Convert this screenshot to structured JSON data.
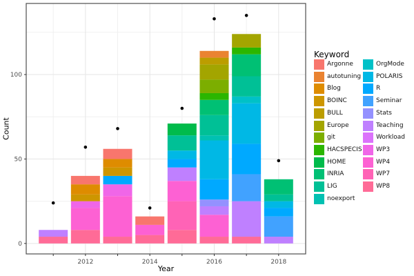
{
  "axes": {
    "x_label": "Year",
    "y_label": "Count"
  },
  "legend": {
    "title": "Keyword"
  },
  "chart_data": {
    "type": "bar",
    "stacked": true,
    "title": "",
    "xlabel": "Year",
    "ylabel": "Count",
    "xlim": [
      2010.16,
      2018.84
    ],
    "ylim": [
      -6.2,
      142.1
    ],
    "x_years": [
      2011,
      2012,
      2013,
      2014,
      2015,
      2016,
      2017,
      2018
    ],
    "x_ticks_labeled": [
      2012,
      2014,
      2016,
      2018
    ],
    "x_gridlines_minor": [
      2011,
      2013,
      2015,
      2017
    ],
    "y_ticks": [
      0,
      50,
      100
    ],
    "y_gridlines_minor": [
      25,
      75,
      125
    ],
    "grid": true,
    "legend_position": "right",
    "point_color": "#000000",
    "panel_border_color": "#4d4d4d",
    "keywords": [
      {
        "name": "Argonne",
        "color": "#F8766D"
      },
      {
        "name": "autotuning",
        "color": "#EA8331"
      },
      {
        "name": "Blog",
        "color": "#DE8C00"
      },
      {
        "name": "BOINC",
        "color": "#CD9600"
      },
      {
        "name": "BULL",
        "color": "#BC9D00"
      },
      {
        "name": "Europe",
        "color": "#A3A500"
      },
      {
        "name": "git",
        "color": "#7CAE00"
      },
      {
        "name": "HACSPECIS",
        "color": "#2BB600"
      },
      {
        "name": "HOME",
        "color": "#00BB4B"
      },
      {
        "name": "INRIA",
        "color": "#00C074"
      },
      {
        "name": "LIG",
        "color": "#00C096"
      },
      {
        "name": "noexport",
        "color": "#00C1B2"
      },
      {
        "name": "OrgMode",
        "color": "#00C1C7"
      },
      {
        "name": "POLARIS",
        "color": "#00B8E5"
      },
      {
        "name": "R",
        "color": "#00A9FF"
      },
      {
        "name": "Seminar",
        "color": "#41A2FF"
      },
      {
        "name": "Stats",
        "color": "#9491FF"
      },
      {
        "name": "Teaching",
        "color": "#BF80FF"
      },
      {
        "name": "Workload",
        "color": "#DB72FB"
      },
      {
        "name": "WP3",
        "color": "#F066E8"
      },
      {
        "name": "WP4",
        "color": "#FD61D3"
      },
      {
        "name": "WP7",
        "color": "#FF63B6"
      },
      {
        "name": "WP8",
        "color": "#FF6B97"
      }
    ],
    "bars": [
      {
        "year": 2011,
        "total": 8,
        "segments": [
          {
            "keyword": "Teaching",
            "value": 4
          },
          {
            "keyword": "WP8",
            "value": 4
          }
        ]
      },
      {
        "year": 2012,
        "total": 40,
        "segments": [
          {
            "keyword": "Argonne",
            "value": 5
          },
          {
            "keyword": "Blog",
            "value": 6
          },
          {
            "keyword": "BOINC",
            "value": 4
          },
          {
            "keyword": "WP3",
            "value": 4
          },
          {
            "keyword": "WP4",
            "value": 13
          },
          {
            "keyword": "WP8",
            "value": 8
          }
        ]
      },
      {
        "year": 2013,
        "total": 56,
        "segments": [
          {
            "keyword": "Argonne",
            "value": 6
          },
          {
            "keyword": "Blog",
            "value": 5
          },
          {
            "keyword": "BOINC",
            "value": 5
          },
          {
            "keyword": "R",
            "value": 5
          },
          {
            "keyword": "WP3",
            "value": 7
          },
          {
            "keyword": "WP4",
            "value": 24
          },
          {
            "keyword": "WP8",
            "value": 4
          }
        ]
      },
      {
        "year": 2014,
        "total": 16,
        "segments": [
          {
            "keyword": "Argonne",
            "value": 5
          },
          {
            "keyword": "WP4",
            "value": 6
          },
          {
            "keyword": "WP8",
            "value": 5
          }
        ]
      },
      {
        "year": 2015,
        "total": 71,
        "segments": [
          {
            "keyword": "HOME",
            "value": 7
          },
          {
            "keyword": "LIG",
            "value": 9
          },
          {
            "keyword": "POLARIS",
            "value": 5
          },
          {
            "keyword": "R",
            "value": 5
          },
          {
            "keyword": "Teaching",
            "value": 8
          },
          {
            "keyword": "WP4",
            "value": 12
          },
          {
            "keyword": "WP7",
            "value": 17
          },
          {
            "keyword": "WP8",
            "value": 8
          }
        ]
      },
      {
        "year": 2016,
        "total": 114,
        "segments": [
          {
            "keyword": "autotuning",
            "value": 4
          },
          {
            "keyword": "BULL",
            "value": 4
          },
          {
            "keyword": "Europe",
            "value": 9
          },
          {
            "keyword": "git",
            "value": 8
          },
          {
            "keyword": "HACSPECIS",
            "value": 4
          },
          {
            "keyword": "INRIA",
            "value": 9
          },
          {
            "keyword": "LIG",
            "value": 12
          },
          {
            "keyword": "noexport",
            "value": 3
          },
          {
            "keyword": "POLARIS",
            "value": 23
          },
          {
            "keyword": "R",
            "value": 12
          },
          {
            "keyword": "Stats",
            "value": 4
          },
          {
            "keyword": "Teaching",
            "value": 5
          },
          {
            "keyword": "WP4",
            "value": 13
          },
          {
            "keyword": "WP8",
            "value": 4
          }
        ]
      },
      {
        "year": 2017,
        "total": 124,
        "segments": [
          {
            "keyword": "Europe",
            "value": 8
          },
          {
            "keyword": "HACSPECIS",
            "value": 4
          },
          {
            "keyword": "INRIA",
            "value": 13
          },
          {
            "keyword": "LIG",
            "value": 12
          },
          {
            "keyword": "OrgMode",
            "value": 4
          },
          {
            "keyword": "POLARIS",
            "value": 24
          },
          {
            "keyword": "R",
            "value": 18
          },
          {
            "keyword": "Seminar",
            "value": 16
          },
          {
            "keyword": "Teaching",
            "value": 21
          },
          {
            "keyword": "WP8",
            "value": 4
          }
        ]
      },
      {
        "year": 2018,
        "total": 38,
        "segments": [
          {
            "keyword": "INRIA",
            "value": 9
          },
          {
            "keyword": "LIG",
            "value": 4
          },
          {
            "keyword": "POLARIS",
            "value": 4
          },
          {
            "keyword": "R",
            "value": 5
          },
          {
            "keyword": "Seminar",
            "value": 12
          },
          {
            "keyword": "Teaching",
            "value": 4
          }
        ]
      }
    ],
    "points": [
      {
        "year": 2011,
        "value": 24
      },
      {
        "year": 2012,
        "value": 57
      },
      {
        "year": 2013,
        "value": 68
      },
      {
        "year": 2014,
        "value": 21
      },
      {
        "year": 2015,
        "value": 80
      },
      {
        "year": 2016,
        "value": 133
      },
      {
        "year": 2017,
        "value": 135
      },
      {
        "year": 2018,
        "value": 49
      }
    ]
  }
}
